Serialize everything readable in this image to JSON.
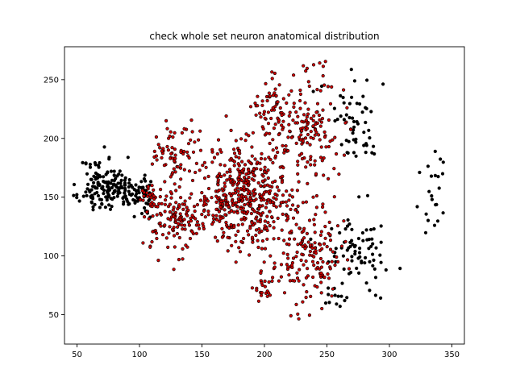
{
  "chart_data": {
    "type": "scatter",
    "title": "check whole set neuron anatomical distribution",
    "xlabel": "",
    "ylabel": "",
    "xlim": [
      40,
      360
    ],
    "ylim": [
      25,
      278
    ],
    "x_ticks": [
      50,
      100,
      150,
      200,
      250,
      300,
      350
    ],
    "y_ticks": [
      50,
      100,
      150,
      200,
      250
    ],
    "grid": false,
    "legend": "none",
    "colors": {
      "selected": "#cc0000",
      "other": "#000000",
      "edge": "#000000"
    },
    "clusters": [
      {
        "group": "other",
        "cx": 70,
        "cy": 160,
        "sx": 9,
        "sy": 12,
        "n": 120,
        "seed": 11
      },
      {
        "group": "other",
        "cx": 90,
        "cy": 155,
        "sx": 9,
        "sy": 7,
        "n": 60,
        "seed": 12
      },
      {
        "group": "other",
        "cx": 104,
        "cy": 152,
        "sx": 3,
        "sy": 8,
        "n": 35,
        "seed": 13
      },
      {
        "group": "other",
        "cx": 277,
        "cy": 215,
        "sx": 13,
        "sy": 20,
        "n": 55,
        "seed": 14
      },
      {
        "group": "other",
        "cx": 278,
        "cy": 105,
        "sx": 13,
        "sy": 18,
        "n": 70,
        "seed": 15
      },
      {
        "group": "other",
        "cx": 335,
        "cy": 152,
        "sx": 6,
        "sy": 20,
        "n": 22,
        "seed": 16
      },
      {
        "group": "other",
        "cx": 258,
        "cy": 70,
        "sx": 5,
        "sy": 12,
        "n": 14,
        "seed": 17
      },
      {
        "group": "selected",
        "cx": 185,
        "cy": 150,
        "sx": 20,
        "sy": 22,
        "n": 470,
        "seed": 21
      },
      {
        "group": "selected",
        "cx": 232,
        "cy": 210,
        "sx": 15,
        "sy": 22,
        "n": 170,
        "seed": 22
      },
      {
        "group": "selected",
        "cx": 235,
        "cy": 100,
        "sx": 13,
        "sy": 20,
        "n": 160,
        "seed": 23
      },
      {
        "group": "selected",
        "cx": 128,
        "cy": 130,
        "sx": 12,
        "sy": 14,
        "n": 120,
        "seed": 24
      },
      {
        "group": "selected",
        "cx": 130,
        "cy": 185,
        "sx": 10,
        "sy": 11,
        "n": 70,
        "seed": 25
      },
      {
        "group": "selected",
        "cx": 205,
        "cy": 230,
        "sx": 8,
        "sy": 13,
        "n": 45,
        "seed": 26
      },
      {
        "group": "selected",
        "cx": 198,
        "cy": 75,
        "sx": 5,
        "sy": 8,
        "n": 22,
        "seed": 27
      },
      {
        "group": "selected",
        "cx": 110,
        "cy": 150,
        "sx": 4,
        "sy": 6,
        "n": 28,
        "seed": 28
      }
    ]
  }
}
